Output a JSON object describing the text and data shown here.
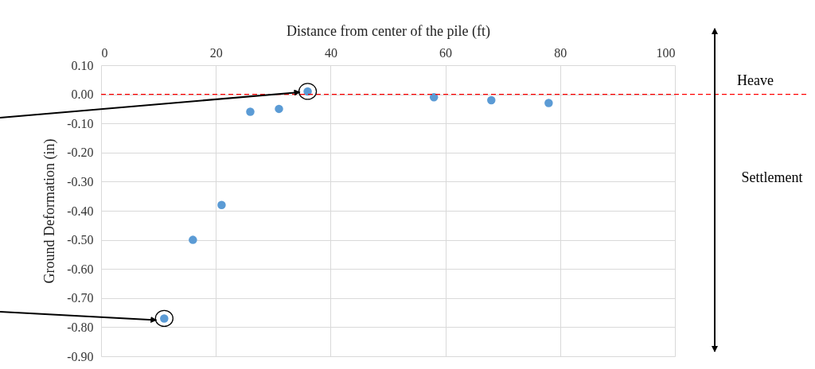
{
  "chart_data": {
    "type": "scatter",
    "xlabel": "Distance from center of the pile (ft)",
    "ylabel": "Ground Deformation (in)",
    "x": [
      11,
      16,
      21,
      26,
      31,
      36,
      58,
      68,
      78
    ],
    "values": [
      -0.77,
      -0.5,
      -0.38,
      -0.06,
      -0.05,
      0.01,
      -0.01,
      -0.02,
      -0.03
    ],
    "color": "#5b9bd5",
    "marker": "circle",
    "xlim": [
      0,
      100
    ],
    "xticks": [
      0,
      20,
      40,
      60,
      80,
      100
    ],
    "ylim": [
      -0.9,
      0.1
    ],
    "yticks": [
      {
        "value": 0.1,
        "label": "0.10"
      },
      {
        "value": 0,
        "label": "0.00"
      },
      {
        "value": -0.1,
        "label": "-0.10"
      },
      {
        "value": -0.2,
        "label": "-0.20"
      },
      {
        "value": -0.3,
        "label": "-0.30"
      },
      {
        "value": -0.4,
        "label": "-0.40"
      },
      {
        "value": -0.5,
        "label": "-0.50"
      },
      {
        "value": -0.6,
        "label": "-0.60"
      },
      {
        "value": -0.7,
        "label": "-0.70"
      },
      {
        "value": -0.8,
        "label": "-0.80"
      },
      {
        "value": -0.9,
        "label": "-0.90"
      }
    ],
    "ref_lines": [
      {
        "axis": "y",
        "value": 0,
        "color": "#ff0000",
        "line_style": "dashed"
      }
    ],
    "annotations": [
      "Heave",
      "Settlement"
    ],
    "grid": true
  }
}
